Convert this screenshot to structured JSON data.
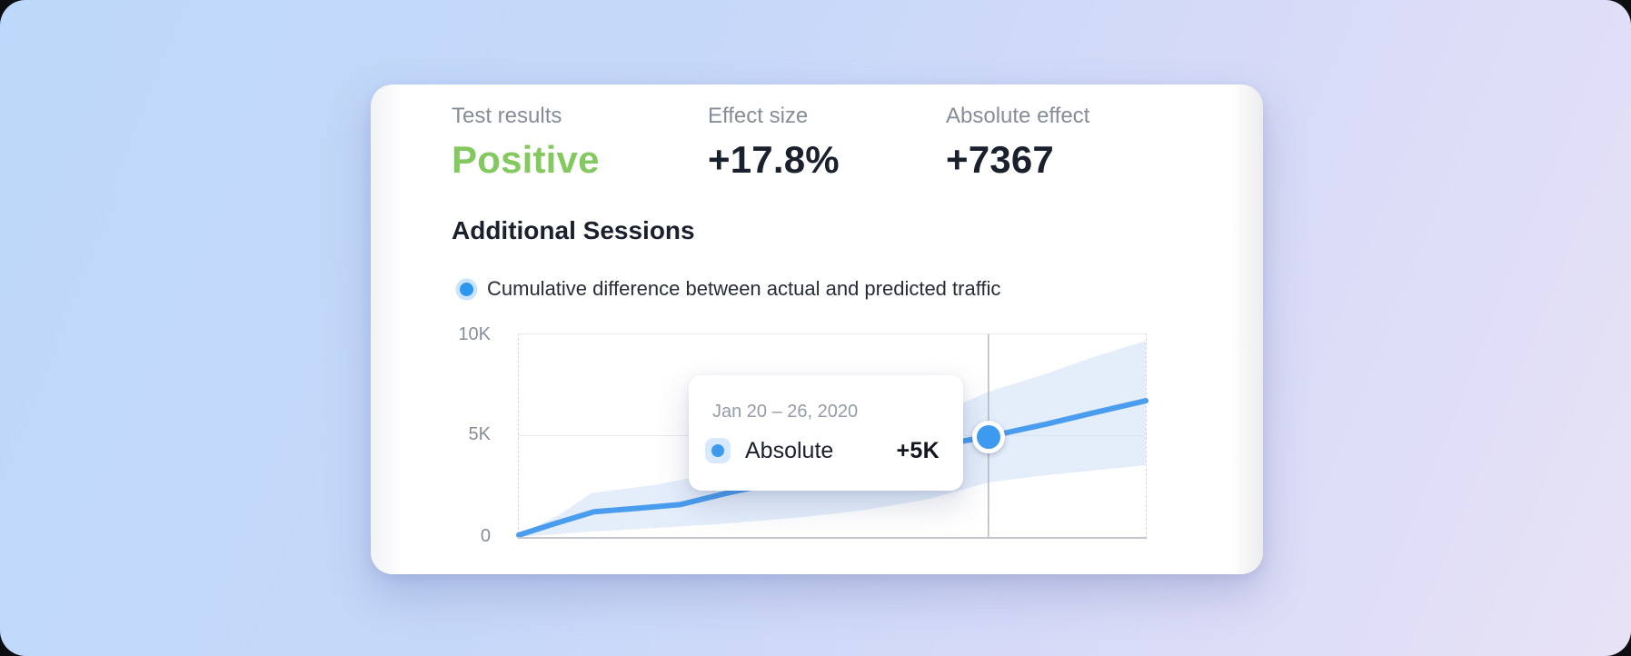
{
  "background": {
    "gradient_start": "#BDD8FA",
    "gradient_end": "#E8E2F6"
  },
  "card": {
    "stats": [
      {
        "label": "Test results",
        "value": "Positive",
        "value_color": "#84C95F"
      },
      {
        "label": "Effect size",
        "value": "+17.8%",
        "value_color": "#1A202C"
      },
      {
        "label": "Absolute effect",
        "value": "+7367",
        "value_color": "#1A202C"
      }
    ],
    "section_title": "Additional Sessions",
    "legend": {
      "label": "Cumulative difference between actual and predicted traffic",
      "dot_color": "#2D96EE"
    }
  },
  "tooltip": {
    "date_range": "Jan 20 – 26, 2020",
    "series_label": "Absolute",
    "value": "+5K"
  },
  "chart_data": {
    "type": "area",
    "title": "Additional Sessions",
    "series": [
      {
        "name": "Cumulative difference between actual and predicted traffic",
        "x_fraction": [
          0,
          0.058,
          0.12,
          0.188,
          0.257,
          0.333,
          0.42,
          0.507,
          0.594,
          0.667,
          0.749,
          0.841,
          0.913,
          1
        ],
        "values_k": [
          0.18,
          0.75,
          1.32,
          1.49,
          1.67,
          2.24,
          2.81,
          3.46,
          4.08,
          4.56,
          5.0,
          5.61,
          6.14,
          6.75
        ]
      }
    ],
    "band_upper": [
      [
        0,
        0.18
      ],
      [
        0.065,
        1.18
      ],
      [
        0.116,
        2.24
      ],
      [
        0.217,
        2.63
      ],
      [
        0.304,
        3.16
      ],
      [
        0.406,
        3.82
      ],
      [
        0.507,
        4.56
      ],
      [
        0.609,
        5.44
      ],
      [
        0.71,
        6.67
      ],
      [
        0.749,
        7.19
      ],
      [
        0.841,
        8.07
      ],
      [
        0.913,
        8.86
      ],
      [
        1,
        9.69
      ]
    ],
    "band_lower": [
      [
        0,
        0.09
      ],
      [
        0.116,
        0.35
      ],
      [
        0.217,
        0.53
      ],
      [
        0.333,
        0.75
      ],
      [
        0.449,
        1.05
      ],
      [
        0.551,
        1.4
      ],
      [
        0.652,
        1.93
      ],
      [
        0.749,
        2.76
      ],
      [
        0.841,
        3.11
      ],
      [
        0.913,
        3.33
      ],
      [
        1,
        3.6
      ]
    ],
    "ylim": [
      0,
      10
    ],
    "y_ticks": [
      {
        "label": "10K",
        "value": 10
      },
      {
        "label": "5K",
        "value": 5
      },
      {
        "label": "0",
        "value": 0
      }
    ],
    "xlabel": "",
    "ylabel": "",
    "grid": "horizontal",
    "legend_position": "top-left",
    "intervention_x_fraction": 0.749,
    "highlight": {
      "x_fraction": 0.749,
      "value_k": 5,
      "label": "+5K",
      "date_range": "Jan 20 – 26, 2020"
    },
    "colors": {
      "line": "#4A9DEE",
      "band": "#C9DDF8",
      "event_line": "#B2B7C0",
      "dot": "#3E9AEF"
    }
  }
}
